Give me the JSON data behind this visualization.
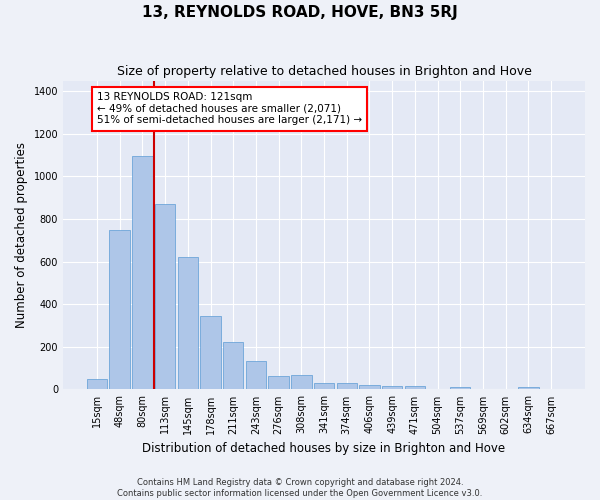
{
  "title": "13, REYNOLDS ROAD, HOVE, BN3 5RJ",
  "subtitle": "Size of property relative to detached houses in Brighton and Hove",
  "xlabel": "Distribution of detached houses by size in Brighton and Hove",
  "ylabel": "Number of detached properties",
  "footer_line1": "Contains HM Land Registry data © Crown copyright and database right 2024.",
  "footer_line2": "Contains public sector information licensed under the Open Government Licence v3.0.",
  "annotation_line1": "13 REYNOLDS ROAD: 121sqm",
  "annotation_line2": "← 49% of detached houses are smaller (2,071)",
  "annotation_line3": "51% of semi-detached houses are larger (2,171) →",
  "bar_color": "#aec6e8",
  "bar_edge_color": "#5b9bd5",
  "vline_color": "#cc0000",
  "vline_x_index": 3,
  "categories": [
    "15sqm",
    "48sqm",
    "80sqm",
    "113sqm",
    "145sqm",
    "178sqm",
    "211sqm",
    "243sqm",
    "276sqm",
    "308sqm",
    "341sqm",
    "374sqm",
    "406sqm",
    "439sqm",
    "471sqm",
    "504sqm",
    "537sqm",
    "569sqm",
    "602sqm",
    "634sqm",
    "667sqm"
  ],
  "values": [
    50,
    750,
    1095,
    870,
    620,
    345,
    225,
    135,
    65,
    70,
    30,
    30,
    22,
    15,
    15,
    0,
    12,
    0,
    0,
    12,
    0
  ],
  "ylim": [
    0,
    1450
  ],
  "yticks": [
    0,
    200,
    400,
    600,
    800,
    1000,
    1200,
    1400
  ],
  "background_color": "#eef1f8",
  "plot_bg_color": "#e4e9f5",
  "grid_color": "#ffffff",
  "title_fontsize": 11,
  "subtitle_fontsize": 9,
  "axis_label_fontsize": 8.5,
  "tick_fontsize": 7,
  "annotation_fontsize": 7.5,
  "footer_fontsize": 6
}
